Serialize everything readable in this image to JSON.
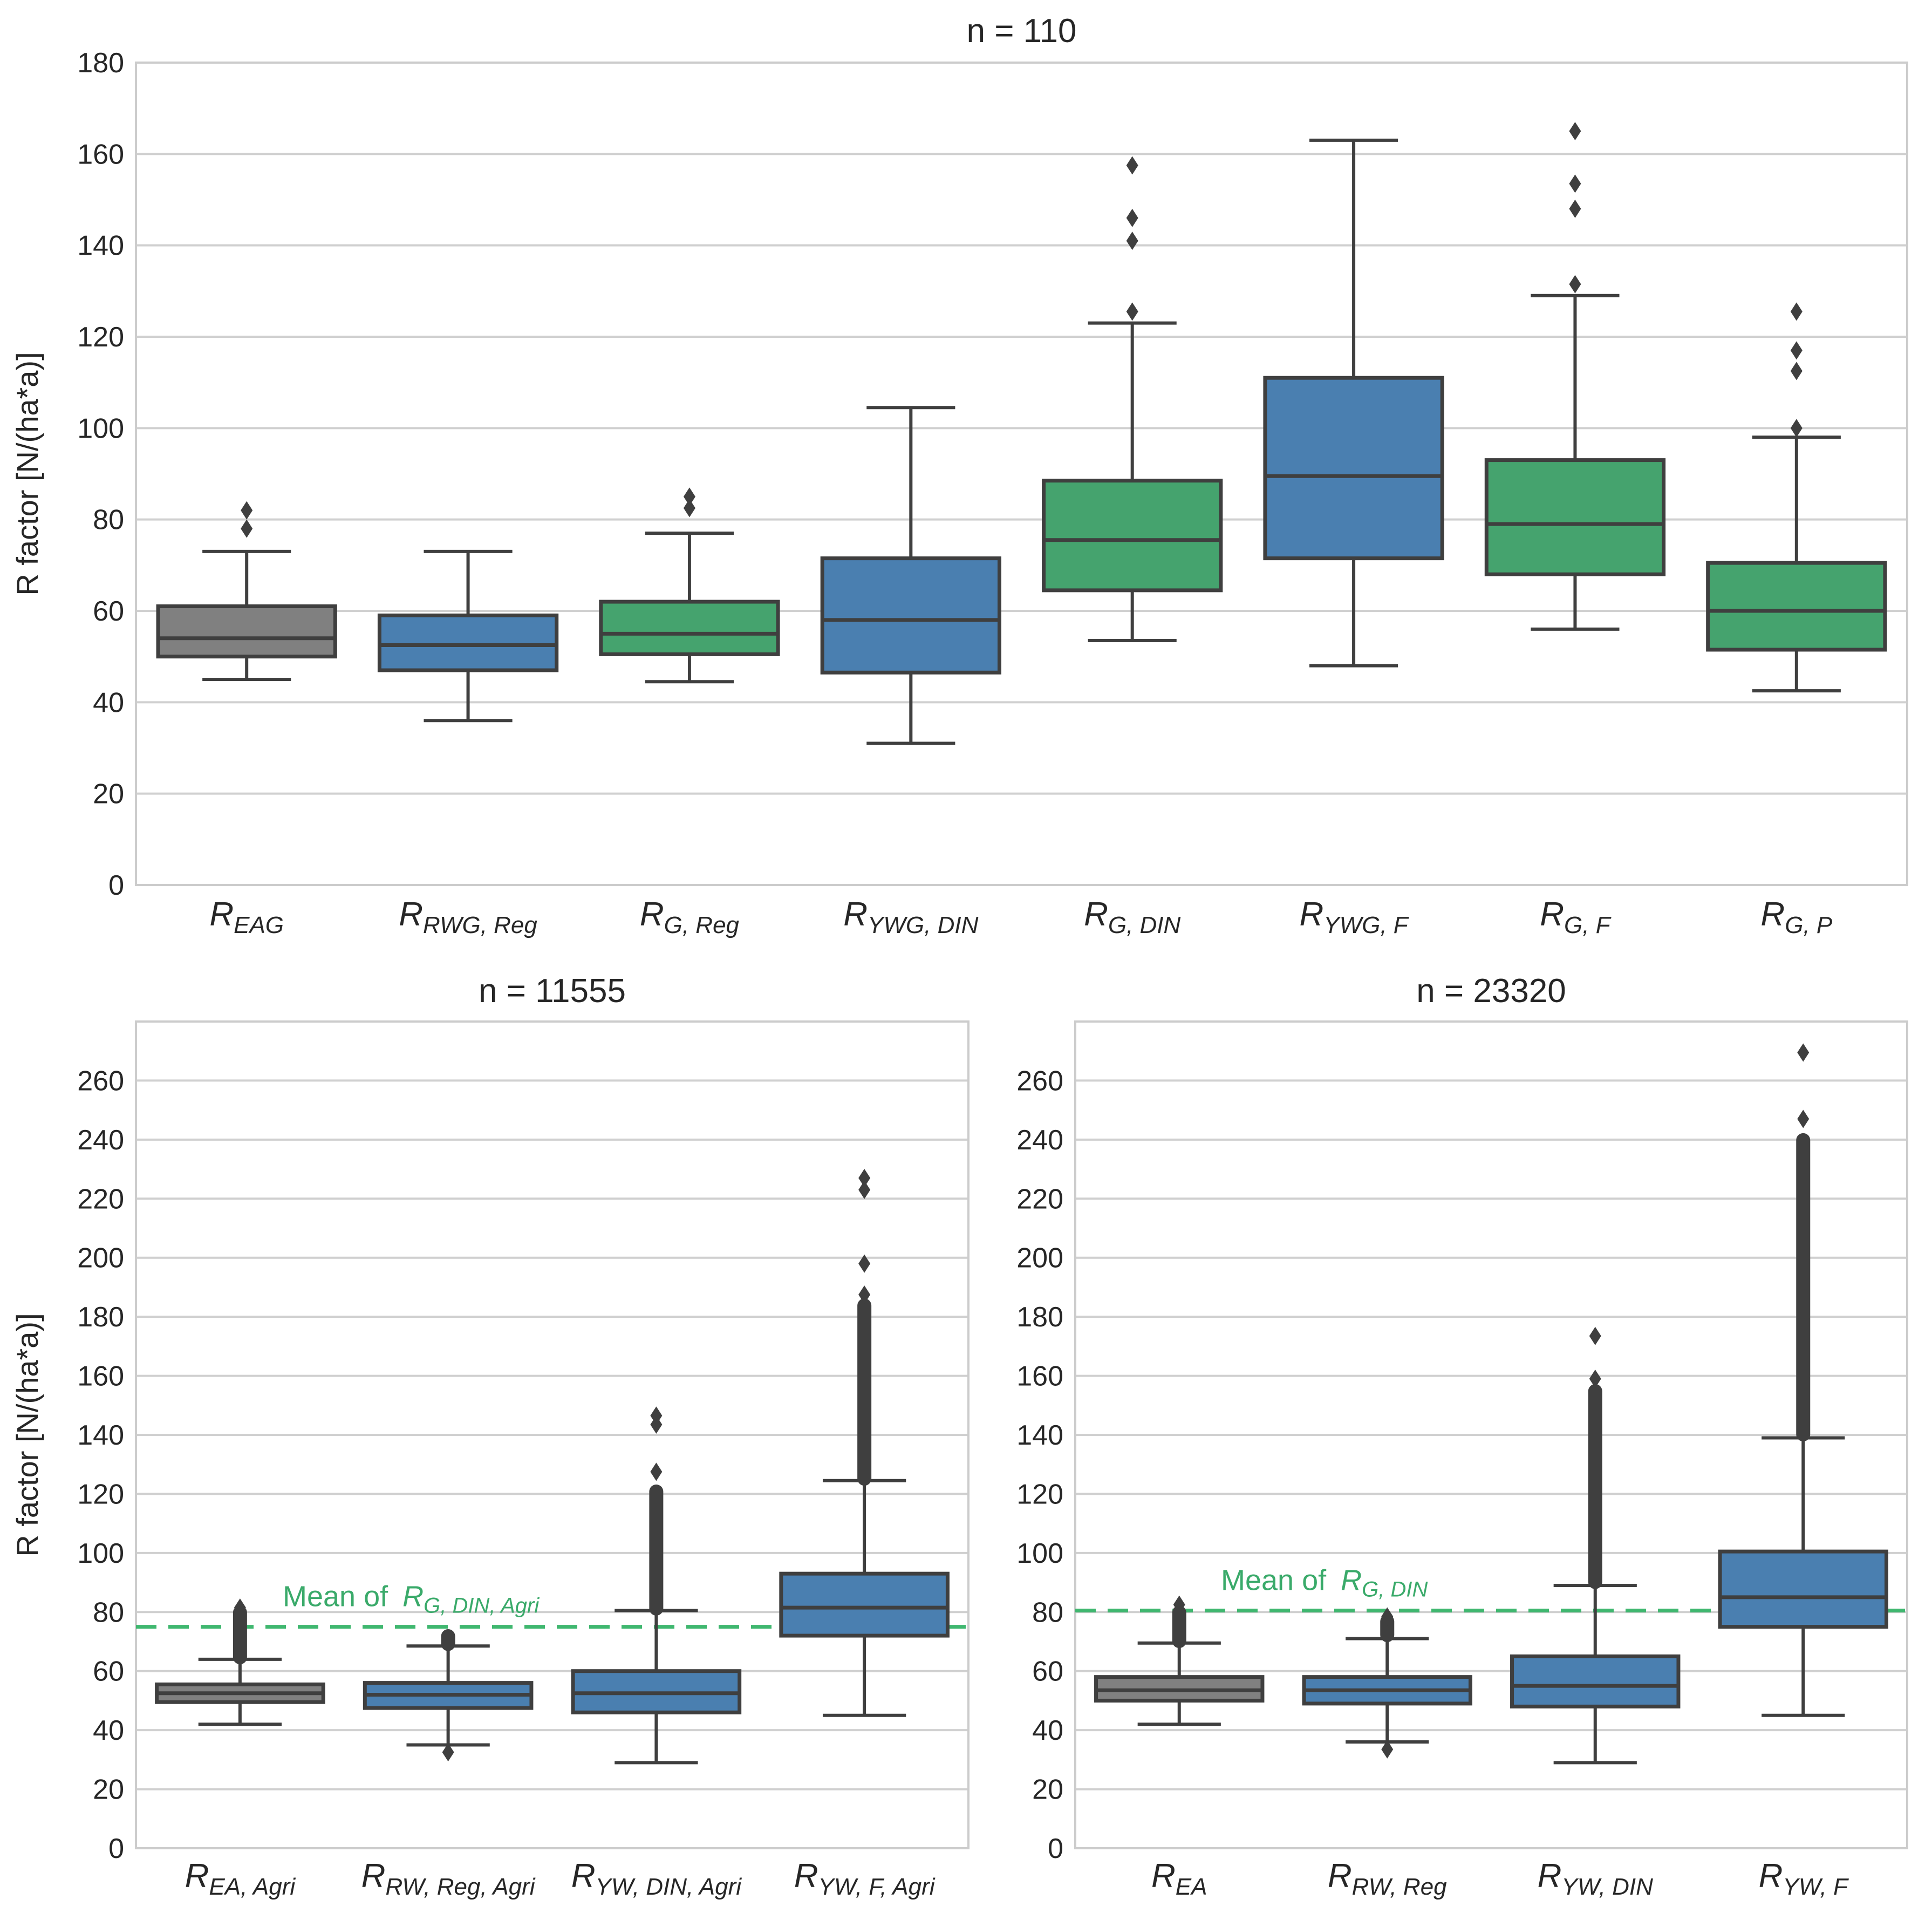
{
  "colors": {
    "gray": "#808080",
    "blue": "#4a7fb0",
    "green": "#45a36e",
    "line": "#3f3f3f",
    "grid": "#d0d0d0",
    "frame": "#cccccc",
    "mean_line": "#3fb76f",
    "annotation": "#3aaa6a"
  },
  "chart_data": [
    {
      "type": "box",
      "title": "n = 110",
      "ylabel": "R factor [N/(ha*a)]",
      "ylim": [
        0,
        180
      ],
      "yticks": [
        "0",
        "20",
        "40",
        "60",
        "80",
        "100",
        "120",
        "140",
        "160",
        "180"
      ],
      "grid": true,
      "boxes": [
        {
          "label_main": "R",
          "label_sub": "EAG",
          "color": "gray",
          "whisker_low": 45,
          "q1": 50,
          "median": 54,
          "q3": 61,
          "whisker_high": 73,
          "outliers": [
            78,
            82
          ]
        },
        {
          "label_main": "R",
          "label_sub": "RWG, Reg",
          "color": "blue",
          "whisker_low": 36,
          "q1": 47,
          "median": 52.5,
          "q3": 59,
          "whisker_high": 73,
          "outliers": []
        },
        {
          "label_main": "R",
          "label_sub": "G, Reg",
          "color": "green",
          "whisker_low": 44.5,
          "q1": 50.5,
          "median": 55,
          "q3": 62,
          "whisker_high": 77,
          "outliers": [
            82.5,
            85
          ]
        },
        {
          "label_main": "R",
          "label_sub": "YWG, DIN",
          "color": "blue",
          "whisker_low": 31,
          "q1": 46.5,
          "median": 58,
          "q3": 71.5,
          "whisker_high": 104.5,
          "outliers": []
        },
        {
          "label_main": "R",
          "label_sub": "G, DIN",
          "color": "green",
          "whisker_low": 53.5,
          "q1": 64.5,
          "median": 75.5,
          "q3": 88.5,
          "whisker_high": 123,
          "outliers": [
            125.5,
            141,
            146,
            157.5
          ]
        },
        {
          "label_main": "R",
          "label_sub": "YWG, F",
          "color": "blue",
          "whisker_low": 48,
          "q1": 71.5,
          "median": 89.5,
          "q3": 111,
          "whisker_high": 163,
          "outliers": []
        },
        {
          "label_main": "R",
          "label_sub": "G, F",
          "color": "green",
          "whisker_low": 56,
          "q1": 68,
          "median": 79,
          "q3": 93,
          "whisker_high": 129,
          "outliers": [
            131.5,
            148,
            153.5,
            165
          ]
        },
        {
          "label_main": "R",
          "label_sub": "G, P",
          "color": "green",
          "whisker_low": 42.5,
          "q1": 51.5,
          "median": 60,
          "q3": 70.5,
          "whisker_high": 98,
          "outliers": [
            100,
            112.5,
            117,
            125.5
          ]
        }
      ]
    },
    {
      "type": "box",
      "title": "n = 11555",
      "ylabel": "R factor [N/(ha*a)]",
      "ylim": [
        0,
        280
      ],
      "yticks": [
        "0",
        "20",
        "40",
        "60",
        "80",
        "100",
        "120",
        "140",
        "160",
        "180",
        "200",
        "220",
        "240",
        "260"
      ],
      "grid": true,
      "mean_line": {
        "value": 75,
        "label_prefix": "Mean of ",
        "label_main": "R",
        "label_sub": "G, DIN, Agri"
      },
      "boxes": [
        {
          "label_main": "R",
          "label_sub": "EA, Agri",
          "color": "gray",
          "whisker_low": 42,
          "q1": 49.5,
          "median": 52.5,
          "q3": 55.5,
          "whisker_high": 64,
          "outliers_range": [
            64.5,
            80
          ],
          "outliers": [
            81.5
          ]
        },
        {
          "label_main": "R",
          "label_sub": "RW, Reg, Agri",
          "color": "blue",
          "whisker_low": 35,
          "q1": 47.5,
          "median": 52,
          "q3": 56,
          "whisker_high": 68.5,
          "outliers_range": [
            69,
            72
          ],
          "outliers": [
            32.5
          ]
        },
        {
          "label_main": "R",
          "label_sub": "YW, DIN, Agri",
          "color": "blue",
          "whisker_low": 29,
          "q1": 46,
          "median": 52.5,
          "q3": 60,
          "whisker_high": 80.5,
          "outliers_range": [
            81,
            121
          ],
          "outliers": [
            127.5,
            143.5,
            146.5
          ]
        },
        {
          "label_main": "R",
          "label_sub": "YW, F, Agri",
          "color": "blue",
          "whisker_low": 45,
          "q1": 72,
          "median": 81.5,
          "q3": 93,
          "whisker_high": 124.5,
          "outliers_range": [
            125,
            184
          ],
          "outliers": [
            187.5,
            198,
            223,
            227
          ]
        }
      ]
    },
    {
      "type": "box",
      "title": "n = 23320",
      "ylim": [
        0,
        280
      ],
      "yticks": [
        "0",
        "20",
        "40",
        "60",
        "80",
        "100",
        "120",
        "140",
        "160",
        "180",
        "200",
        "220",
        "240",
        "260"
      ],
      "grid": true,
      "mean_line": {
        "value": 80.5,
        "label_prefix": "Mean of ",
        "label_main": "R",
        "label_sub": "G, DIN"
      },
      "boxes": [
        {
          "label_main": "R",
          "label_sub": "EA",
          "color": "gray",
          "whisker_low": 42,
          "q1": 50,
          "median": 53.5,
          "q3": 58,
          "whisker_high": 69.5,
          "outliers_range": [
            70,
            80
          ],
          "outliers": [
            82.5
          ]
        },
        {
          "label_main": "R",
          "label_sub": "RW, Reg",
          "color": "blue",
          "whisker_low": 36,
          "q1": 49,
          "median": 53.5,
          "q3": 58,
          "whisker_high": 71,
          "outliers_range": [
            72,
            77
          ],
          "outliers": [
            33.5,
            78.5
          ]
        },
        {
          "label_main": "R",
          "label_sub": "YW, DIN",
          "color": "blue",
          "whisker_low": 29,
          "q1": 48,
          "median": 55,
          "q3": 65,
          "whisker_high": 89,
          "outliers_range": [
            90,
            155
          ],
          "outliers": [
            159,
            173.5
          ]
        },
        {
          "label_main": "R",
          "label_sub": "YW, F",
          "color": "blue",
          "whisker_low": 45,
          "q1": 75,
          "median": 85,
          "q3": 100.5,
          "whisker_high": 139,
          "outliers_range": [
            140,
            240
          ],
          "outliers": [
            247,
            269.5
          ]
        }
      ]
    }
  ]
}
